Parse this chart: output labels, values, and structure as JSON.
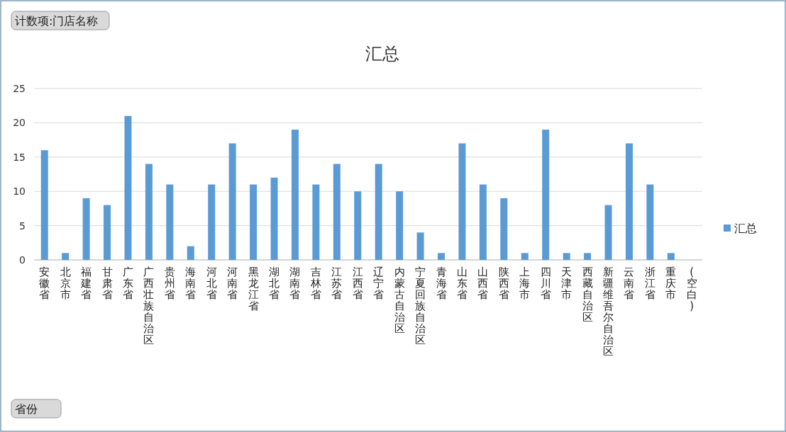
{
  "chart_data": {
    "type": "bar",
    "title": "汇总",
    "categories": [
      "安徽省",
      "北京市",
      "福建省",
      "甘肃省",
      "广东省",
      "广西壮族自治区",
      "贵州省",
      "海南省",
      "河北省",
      "河南省",
      "黑龙江省",
      "湖北省",
      "湖南省",
      "吉林省",
      "江苏省",
      "江西省",
      "辽宁省",
      "内蒙古自治区",
      "宁夏回族自治区",
      "青海省",
      "山东省",
      "山西省",
      "陕西省",
      "上海市",
      "四川省",
      "天津市",
      "西藏自治区",
      "新疆维吾尔自治区",
      "云南省",
      "浙江省",
      "重庆市",
      "(空白)"
    ],
    "series": [
      {
        "name": "汇总",
        "color": "#5b9bd5",
        "values": [
          16,
          1,
          9,
          8,
          21,
          14,
          11,
          2,
          11,
          17,
          11,
          12,
          19,
          11,
          14,
          10,
          14,
          10,
          4,
          1,
          17,
          11,
          9,
          1,
          19,
          1,
          1,
          8,
          17,
          11,
          1,
          null
        ]
      }
    ],
    "ylim": [
      0,
      25
    ],
    "yticks": [
      0,
      5,
      10,
      15,
      20,
      25
    ],
    "grid": "y",
    "legend": "right",
    "annotations": [
      "计数项:门店名称",
      "省份"
    ]
  }
}
